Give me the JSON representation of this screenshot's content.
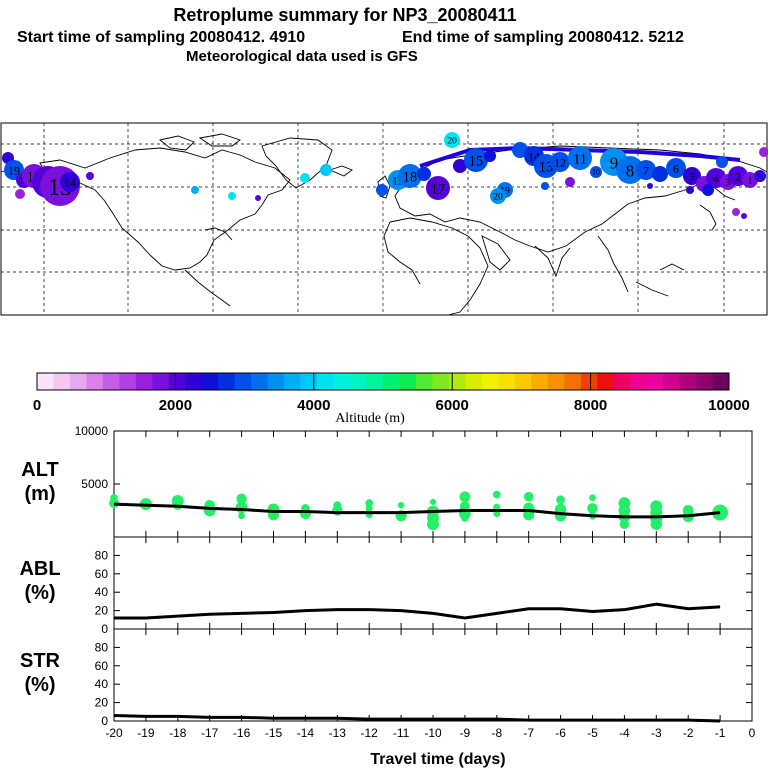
{
  "header": {
    "title": "Retroplume summary for NP3_20080411",
    "start_label": "Start time of sampling 20080412.  4910",
    "end_label": "End time of sampling 20080412.  5212",
    "met_label": "Meteorological data used is GFS"
  },
  "colorbar": {
    "label": "Altitude (m)",
    "ticks": [
      "0",
      "2000",
      "4000",
      "6000",
      "8000",
      "10000"
    ],
    "colors": [
      "#f9e3f8",
      "#f2c7f2",
      "#e8a8ee",
      "#d982ea",
      "#c75de6",
      "#b43fe3",
      "#9a22df",
      "#7a10dc",
      "#5400da",
      "#3000d6",
      "#1010d8",
      "#0030e0",
      "#0050ea",
      "#0070f0",
      "#0090f4",
      "#00aef6",
      "#00c8f6",
      "#00e2f2",
      "#00f0e0",
      "#00f4c0",
      "#00f49a",
      "#00f070",
      "#10ec50",
      "#50ea30",
      "#80e820",
      "#b0e810",
      "#d8ee00",
      "#f0f200",
      "#f8e000",
      "#fcc800",
      "#fcac00",
      "#f89000",
      "#f47000",
      "#f04000",
      "#ec1010",
      "#f00060",
      "#f00090",
      "#e800a0",
      "#d00090",
      "#b00080",
      "#900070",
      "#700060"
    ]
  },
  "map": {
    "trajectory_labels": [
      "20",
      "19",
      "18",
      "17",
      "16",
      "15",
      "14",
      "13",
      "12",
      "11",
      "10",
      "9",
      "8",
      "7",
      "6",
      "5",
      "4",
      "3",
      "2",
      "1"
    ]
  },
  "chart_data": [
    {
      "name": "ALT",
      "type": "line",
      "ylabel": "ALT\n(m)",
      "ylabel_lines": [
        "ALT",
        "(m)"
      ],
      "ylim": [
        0,
        10000
      ],
      "yticks": [
        "5000",
        "10000"
      ],
      "x": [
        -20,
        -19,
        -18,
        -17,
        -16,
        -15,
        -14,
        -13,
        -12,
        -11,
        -10,
        -9,
        -8,
        -7,
        -6,
        -5,
        -4,
        -3,
        -2,
        -1
      ],
      "line_values": [
        3100,
        3000,
        2900,
        2700,
        2600,
        2400,
        2400,
        2300,
        2300,
        2300,
        2400,
        2500,
        2500,
        2500,
        2200,
        2000,
        1900,
        1900,
        2000,
        2300
      ],
      "points": [
        [
          -20,
          3200
        ],
        [
          -20,
          3700
        ],
        [
          -19,
          3100
        ],
        [
          -18,
          3000
        ],
        [
          -18,
          3400
        ],
        [
          -17,
          3000
        ],
        [
          -17,
          2500
        ],
        [
          -16,
          3600
        ],
        [
          -16,
          2800
        ],
        [
          -16,
          2000
        ],
        [
          -15,
          2600
        ],
        [
          -15,
          2100
        ],
        [
          -14,
          2700
        ],
        [
          -14,
          2200
        ],
        [
          -13,
          2500
        ],
        [
          -13,
          3000
        ],
        [
          -12,
          2700
        ],
        [
          -12,
          2100
        ],
        [
          -12,
          3200
        ],
        [
          -11,
          3000
        ],
        [
          -11,
          2000
        ],
        [
          -10,
          3300
        ],
        [
          -10,
          2400
        ],
        [
          -10,
          1800
        ],
        [
          -10,
          1200
        ],
        [
          -9,
          3800
        ],
        [
          -9,
          2900
        ],
        [
          -9,
          2200
        ],
        [
          -9,
          1800
        ],
        [
          -8,
          4000
        ],
        [
          -8,
          2800
        ],
        [
          -8,
          2200
        ],
        [
          -7,
          3800
        ],
        [
          -7,
          2700
        ],
        [
          -7,
          2100
        ],
        [
          -6,
          3500
        ],
        [
          -6,
          2600
        ],
        [
          -6,
          2000
        ],
        [
          -5,
          3700
        ],
        [
          -5,
          2700
        ],
        [
          -5,
          2000
        ],
        [
          -4,
          3200
        ],
        [
          -4,
          2500
        ],
        [
          -4,
          1900
        ],
        [
          -4,
          1200
        ],
        [
          -3,
          2900
        ],
        [
          -3,
          2300
        ],
        [
          -3,
          1700
        ],
        [
          -3,
          1200
        ],
        [
          -2,
          2500
        ],
        [
          -2,
          1900
        ],
        [
          -1,
          2300
        ]
      ]
    },
    {
      "name": "ABL",
      "type": "line",
      "ylabel": "ABL\n(%)",
      "ylabel_lines": [
        "ABL",
        "(%)"
      ],
      "ylim": [
        0,
        100
      ],
      "yticks": [
        "0",
        "20",
        "40",
        "60",
        "80"
      ],
      "x": [
        -20,
        -19,
        -18,
        -17,
        -16,
        -15,
        -14,
        -13,
        -12,
        -11,
        -10,
        -9,
        -8,
        -7,
        -6,
        -5,
        -4,
        -3,
        -2,
        -1
      ],
      "values": [
        12,
        12,
        14,
        16,
        17,
        18,
        20,
        21,
        21,
        20,
        17,
        12,
        17,
        22,
        22,
        19,
        21,
        27,
        22,
        24
      ]
    },
    {
      "name": "STR",
      "type": "line",
      "ylabel": "STR\n(%)",
      "ylabel_lines": [
        "STR",
        "(%)"
      ],
      "ylim": [
        0,
        100
      ],
      "yticks": [
        "0",
        "20",
        "40",
        "60",
        "80"
      ],
      "x": [
        -20,
        -19,
        -18,
        -17,
        -16,
        -15,
        -14,
        -13,
        -12,
        -11,
        -10,
        -9,
        -8,
        -7,
        -6,
        -5,
        -4,
        -3,
        -2,
        -1
      ],
      "values": [
        6,
        5,
        5,
        4,
        4,
        3,
        3,
        3,
        2,
        2,
        2,
        2,
        2,
        1,
        1,
        1,
        1,
        1,
        1,
        0
      ],
      "xlabel": "Travel time (days)",
      "xticks": [
        "-20",
        "-19",
        "-18",
        "-17",
        "-16",
        "-15",
        "-14",
        "-13",
        "-12",
        "-11",
        "-10",
        "-9",
        "-8",
        "-7",
        "-6",
        "-5",
        "-4",
        "-3",
        "-2",
        "-1",
        "0"
      ]
    }
  ]
}
